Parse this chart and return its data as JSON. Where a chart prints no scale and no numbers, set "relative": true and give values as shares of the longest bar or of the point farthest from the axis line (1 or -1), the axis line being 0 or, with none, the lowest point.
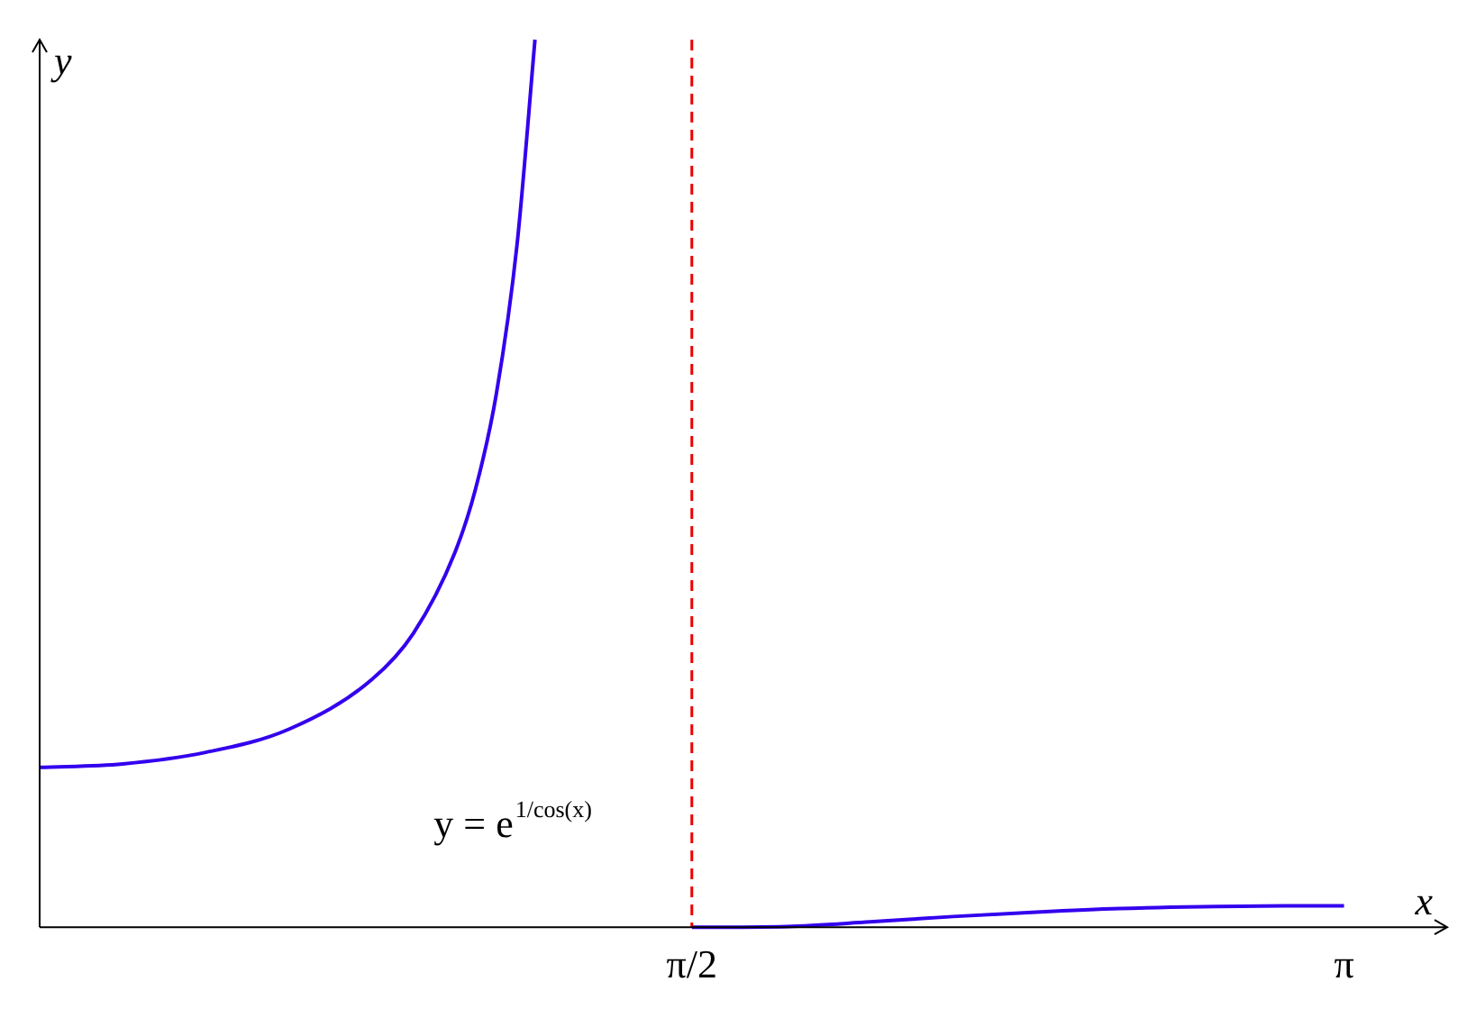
{
  "chart_data": {
    "type": "line",
    "relative": true,
    "xlabel": "x",
    "ylabel": "y",
    "xlim": [
      0,
      3.39
    ],
    "xticks": [
      {
        "value": 1.5708,
        "label": "π/2"
      },
      {
        "value": 3.1416,
        "label": "π"
      }
    ],
    "series": [
      {
        "color": "#3300ee",
        "x": [
          0,
          0.2,
          0.4,
          0.6,
          0.8,
          0.9,
          1.0,
          1.05,
          1.1,
          1.15,
          1.193
        ],
        "values": [
          0.18,
          0.184,
          0.197,
          0.223,
          0.279,
          0.331,
          0.422,
          0.494,
          0.601,
          0.77,
          1.0
        ]
      },
      {
        "color": "#3300ee",
        "x": [
          1.5708,
          1.6,
          1.8,
          2.0,
          2.2,
          2.4,
          2.6,
          2.8,
          3.0,
          3.1416
        ],
        "values": [
          0,
          0,
          0.0008,
          0.006,
          0.012,
          0.017,
          0.021,
          0.023,
          0.024,
          0.024
        ]
      }
    ],
    "ref_lines": [
      {
        "axis": "x",
        "value": 1.5708,
        "color": "#ee0000",
        "line_style": "dashed"
      }
    ],
    "annotations": [
      "y = e$^{1/cos(x)}$"
    ],
    "marker": "none",
    "line_style": "solid",
    "grid": false,
    "legend": false
  }
}
